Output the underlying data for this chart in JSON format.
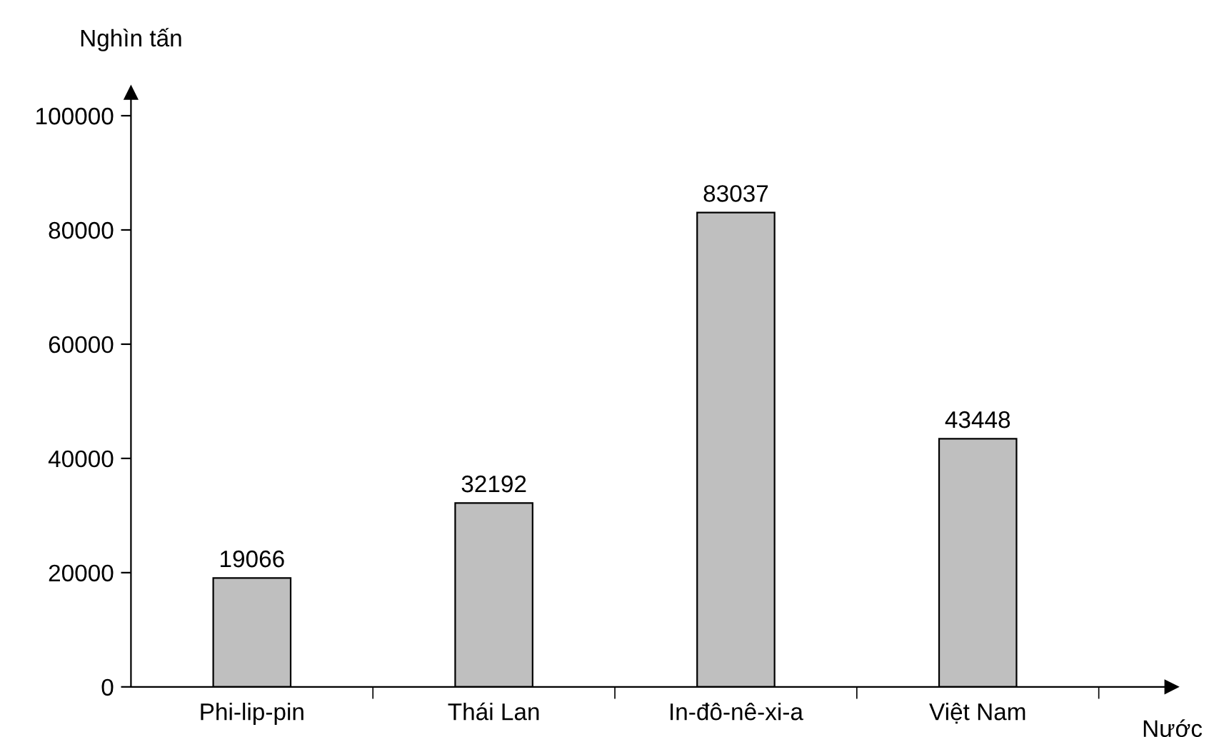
{
  "chart_data": {
    "type": "bar",
    "categories": [
      "Phi-lip-pin",
      "Thái Lan",
      "In-đô-nê-xi-a",
      "Việt Nam"
    ],
    "values": [
      19066,
      32192,
      83037,
      43448
    ],
    "color": "#bfbfbf",
    "ylabel": "Nghìn tấn",
    "xlabel": "Nước",
    "ylim": [
      0,
      104000
    ],
    "yticks": [
      0,
      20000,
      40000,
      60000,
      80000,
      100000
    ],
    "data_labels": true,
    "grid": false,
    "legend": false
  }
}
